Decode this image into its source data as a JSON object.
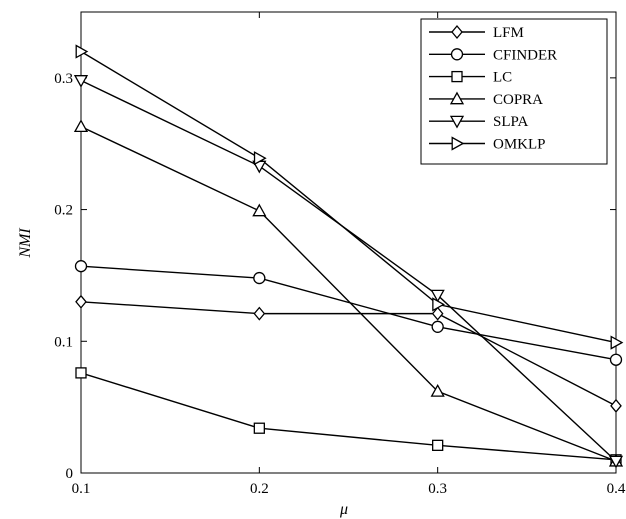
{
  "chart_data": {
    "type": "line",
    "title": "",
    "xlabel": "μ",
    "ylabel": "NMI",
    "x": [
      0.1,
      0.2,
      0.3,
      0.4
    ],
    "x_ticks": [
      "0.1",
      "0.2",
      "0.3",
      "0.4"
    ],
    "y_ticks": [
      "0",
      "0.1",
      "0.2",
      "0.3"
    ],
    "xlim": [
      0.1,
      0.4
    ],
    "ylim": [
      0,
      0.35
    ],
    "grid": false,
    "legend_position": "top-right",
    "series": [
      {
        "name": "LFM",
        "marker": "diamond",
        "values": [
          0.13,
          0.121,
          0.121,
          0.051
        ]
      },
      {
        "name": "CFINDER",
        "marker": "circle",
        "values": [
          0.157,
          0.148,
          0.111,
          0.086
        ]
      },
      {
        "name": "LC",
        "marker": "square",
        "values": [
          0.076,
          0.034,
          0.021,
          0.01
        ]
      },
      {
        "name": "COPRA",
        "marker": "triangle-up",
        "values": [
          0.263,
          0.199,
          0.062,
          0.009
        ]
      },
      {
        "name": "SLPA",
        "marker": "triangle-down",
        "values": [
          0.298,
          0.233,
          0.135,
          0.009
        ]
      },
      {
        "name": "OMKLP",
        "marker": "triangle-right",
        "values": [
          0.32,
          0.239,
          0.128,
          0.099
        ]
      }
    ]
  }
}
